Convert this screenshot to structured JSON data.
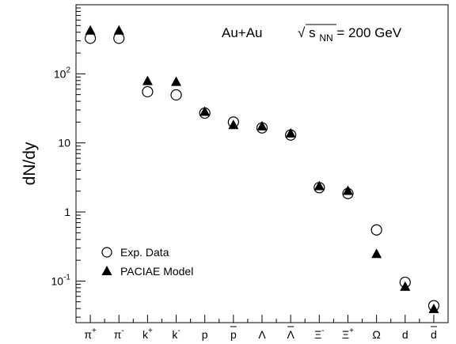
{
  "chart_data": {
    "type": "scatter",
    "title": "",
    "annotation": {
      "system": "Au+Au",
      "energy_sqrt": "√",
      "energy_s": "s",
      "energy_sub": "NN",
      "energy_value": " = 200 GeV"
    },
    "ylabel": "dN/dy",
    "xlabel": "",
    "y_scale": "log",
    "ylim": [
      0.025,
      1000
    ],
    "y_ticks": [
      {
        "value": 100,
        "base": "10",
        "exp": "2"
      },
      {
        "value": 10,
        "base": "10",
        "exp": ""
      },
      {
        "value": 1,
        "base": "1",
        "exp": ""
      },
      {
        "value": 0.1,
        "base": "10",
        "exp": "-1"
      }
    ],
    "categories": [
      {
        "base": "π",
        "sup": "+",
        "over": ""
      },
      {
        "base": "π",
        "sup": "-",
        "over": ""
      },
      {
        "base": "k",
        "sup": "+",
        "over": ""
      },
      {
        "base": "k",
        "sup": "-",
        "over": ""
      },
      {
        "base": "p",
        "sup": "",
        "over": ""
      },
      {
        "base": "p",
        "sup": "",
        "over": "bar"
      },
      {
        "base": "Λ",
        "sup": "",
        "over": ""
      },
      {
        "base": "Λ",
        "sup": "",
        "over": "bar"
      },
      {
        "base": "Ξ",
        "sup": "-",
        "over": ""
      },
      {
        "base": "Ξ",
        "sup": "+",
        "over": ""
      },
      {
        "base": "Ω",
        "sup": "",
        "over": ""
      },
      {
        "base": "d",
        "sup": "",
        "over": ""
      },
      {
        "base": "d",
        "sup": "",
        "over": "bar"
      }
    ],
    "series": [
      {
        "name": "Exp. Data",
        "marker": "open-circle",
        "values": [
          327,
          327,
          55,
          49.5,
          27,
          20,
          16.5,
          13,
          2.25,
          1.85,
          0.55,
          0.096,
          0.044
        ]
      },
      {
        "name": "PACIAE Model",
        "marker": "filled-triangle",
        "values": [
          420,
          420,
          78,
          76,
          28,
          18,
          17.2,
          13.6,
          2.35,
          2.0,
          0.245,
          0.082,
          0.039
        ]
      }
    ],
    "legend_position": "bottom-left",
    "grid": false
  }
}
